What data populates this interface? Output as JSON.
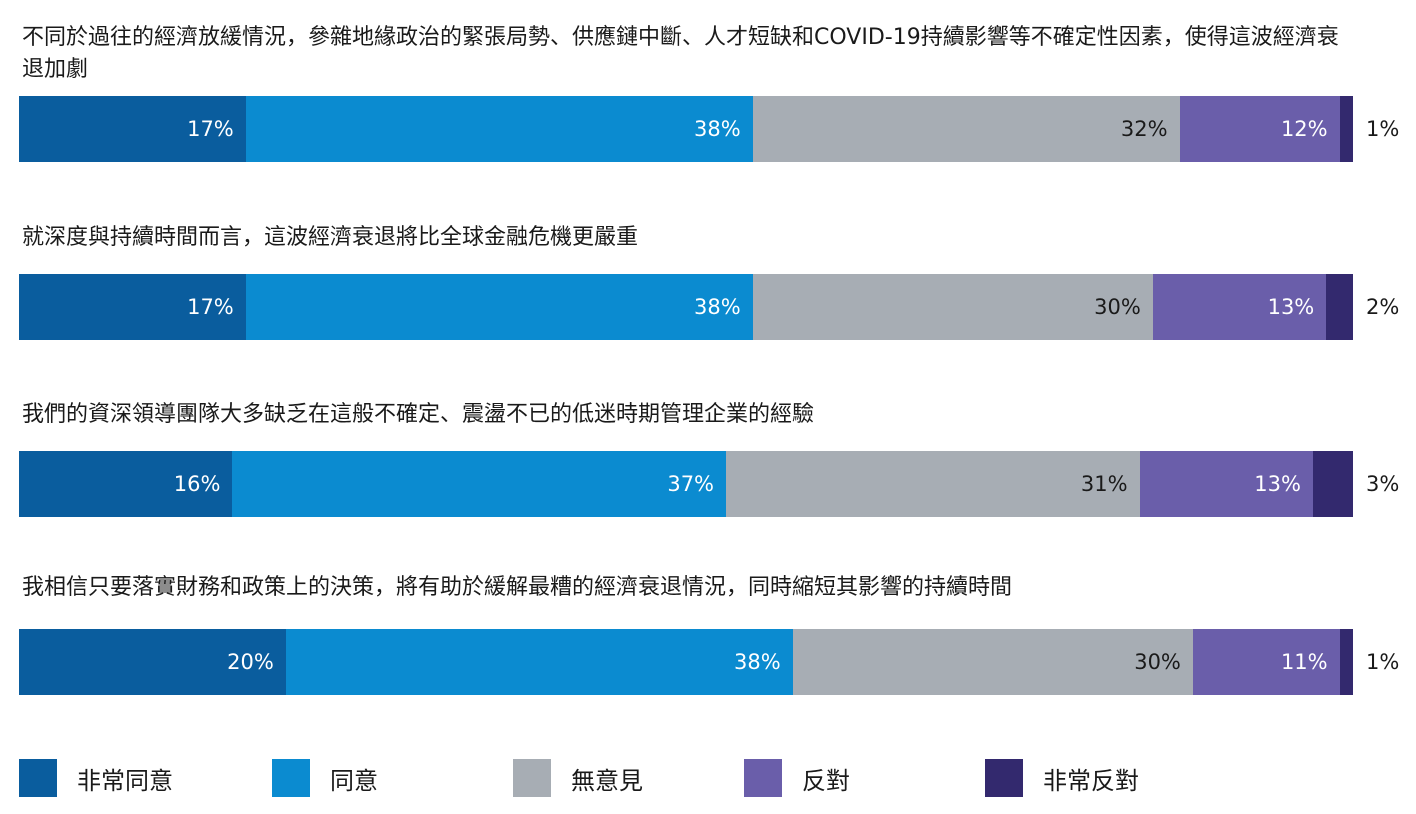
{
  "chart_data": {
    "type": "bar",
    "orientation": "horizontal-stacked-100",
    "categories": [
      "不同於過往的經濟放緩情況，參雜地緣政治的緊張局勢、供應鏈中斷、人才短缺和COVID-19持續影響等不確定性因素，使得這波經濟衰退加劇",
      "就深度與持續時間而言，這波經濟衰退將比全球金融危機更嚴重",
      "我們的資深領導團隊大多缺乏在這般不確定、震盪不已的低迷時期管理企業的經驗",
      "我相信只要落實財務和政策上的決策，將有助於緩解最糟的經濟衰退情況，同時縮短其影響的持續時間"
    ],
    "series": [
      {
        "name": "非常同意",
        "color": "#0a5d9e",
        "text_color": "#ffffff",
        "values": [
          17,
          17,
          16,
          20
        ],
        "labels": [
          "17%",
          "17%",
          "16%",
          "20%"
        ]
      },
      {
        "name": "同意",
        "color": "#0b8bd0",
        "text_color": "#ffffff",
        "values": [
          38,
          38,
          37,
          38
        ],
        "labels": [
          "38%",
          "38%",
          "37%",
          "38%"
        ]
      },
      {
        "name": "無意見",
        "color": "#a7adb4",
        "text_color": "#1a1a1a",
        "values": [
          32,
          30,
          31,
          30
        ],
        "labels": [
          "32%",
          "30%",
          "31%",
          "30%"
        ]
      },
      {
        "name": "反對",
        "color": "#6a5eaa",
        "text_color": "#ffffff",
        "values": [
          12,
          13,
          13,
          11
        ],
        "labels": [
          "12%",
          "13%",
          "13%",
          "11%"
        ]
      },
      {
        "name": "非常反對",
        "color": "#33296e",
        "text_color": "#ffffff",
        "values": [
          1,
          2,
          3,
          1
        ],
        "labels": [
          "1%",
          "2%",
          "3%",
          "1%"
        ]
      }
    ],
    "xlim": [
      0,
      100
    ],
    "legend_position": "bottom"
  }
}
